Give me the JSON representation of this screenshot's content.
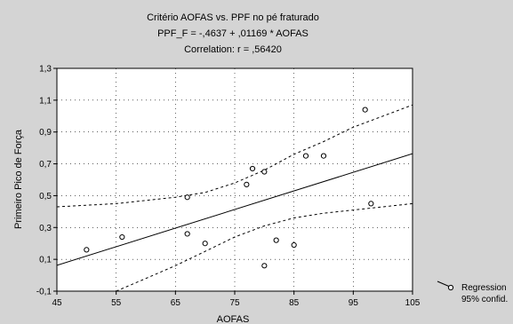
{
  "chart_data": {
    "type": "scatter",
    "title_lines": [
      "Critério AOFAS vs. PPF no pé fraturado",
      "PPF_F = -,4637 + ,01169 * AOFAS",
      "Correlation: r = ,56420"
    ],
    "xlabel": "AOFAS",
    "ylabel": "Primeiro Pico de Força",
    "xlim": [
      45,
      105
    ],
    "ylim": [
      -0.1,
      1.3
    ],
    "x_ticks": [
      "45",
      "55",
      "65",
      "75",
      "85",
      "95",
      "105"
    ],
    "x_tick_values": [
      45,
      55,
      65,
      75,
      85,
      95,
      105
    ],
    "y_ticks": [
      "-0,1",
      "0,1",
      "0,3",
      "0,5",
      "0,7",
      "0,9",
      "1,1",
      "1,3"
    ],
    "y_tick_values": [
      -0.1,
      0.1,
      0.3,
      0.5,
      0.7,
      0.9,
      1.1,
      1.3
    ],
    "grid": true,
    "points": [
      {
        "x": 50,
        "y": 0.16
      },
      {
        "x": 56,
        "y": 0.24
      },
      {
        "x": 67,
        "y": 0.49
      },
      {
        "x": 67,
        "y": 0.26
      },
      {
        "x": 70,
        "y": 0.2
      },
      {
        "x": 77,
        "y": 0.57
      },
      {
        "x": 78,
        "y": 0.67
      },
      {
        "x": 80,
        "y": 0.65
      },
      {
        "x": 80,
        "y": 0.06
      },
      {
        "x": 82,
        "y": 0.22
      },
      {
        "x": 85,
        "y": 0.19
      },
      {
        "x": 87,
        "y": 0.75
      },
      {
        "x": 90,
        "y": 0.75
      },
      {
        "x": 97,
        "y": 1.04
      },
      {
        "x": 98,
        "y": 0.45
      }
    ],
    "regression": {
      "intercept": -0.4637,
      "slope": 0.01169
    },
    "confidence_upper": [
      {
        "x": 45,
        "y": 0.43
      },
      {
        "x": 55,
        "y": 0.45
      },
      {
        "x": 65,
        "y": 0.49
      },
      {
        "x": 70,
        "y": 0.52
      },
      {
        "x": 75,
        "y": 0.58
      },
      {
        "x": 80,
        "y": 0.66
      },
      {
        "x": 85,
        "y": 0.76
      },
      {
        "x": 90,
        "y": 0.84
      },
      {
        "x": 95,
        "y": 0.93
      },
      {
        "x": 100,
        "y": 1.0
      },
      {
        "x": 105,
        "y": 1.07
      }
    ],
    "confidence_lower": [
      {
        "x": 55,
        "y": -0.1
      },
      {
        "x": 60,
        "y": -0.02
      },
      {
        "x": 65,
        "y": 0.06
      },
      {
        "x": 70,
        "y": 0.15
      },
      {
        "x": 75,
        "y": 0.24
      },
      {
        "x": 80,
        "y": 0.31
      },
      {
        "x": 85,
        "y": 0.36
      },
      {
        "x": 90,
        "y": 0.39
      },
      {
        "x": 95,
        "y": 0.41
      },
      {
        "x": 100,
        "y": 0.43
      },
      {
        "x": 105,
        "y": 0.45
      }
    ],
    "legend": {
      "position": "bottom-right",
      "entries": [
        "Regression",
        "95% confid."
      ]
    },
    "colors": {
      "background": "#d4d4d4",
      "plot": "#ffffff",
      "line": "#000000"
    }
  }
}
